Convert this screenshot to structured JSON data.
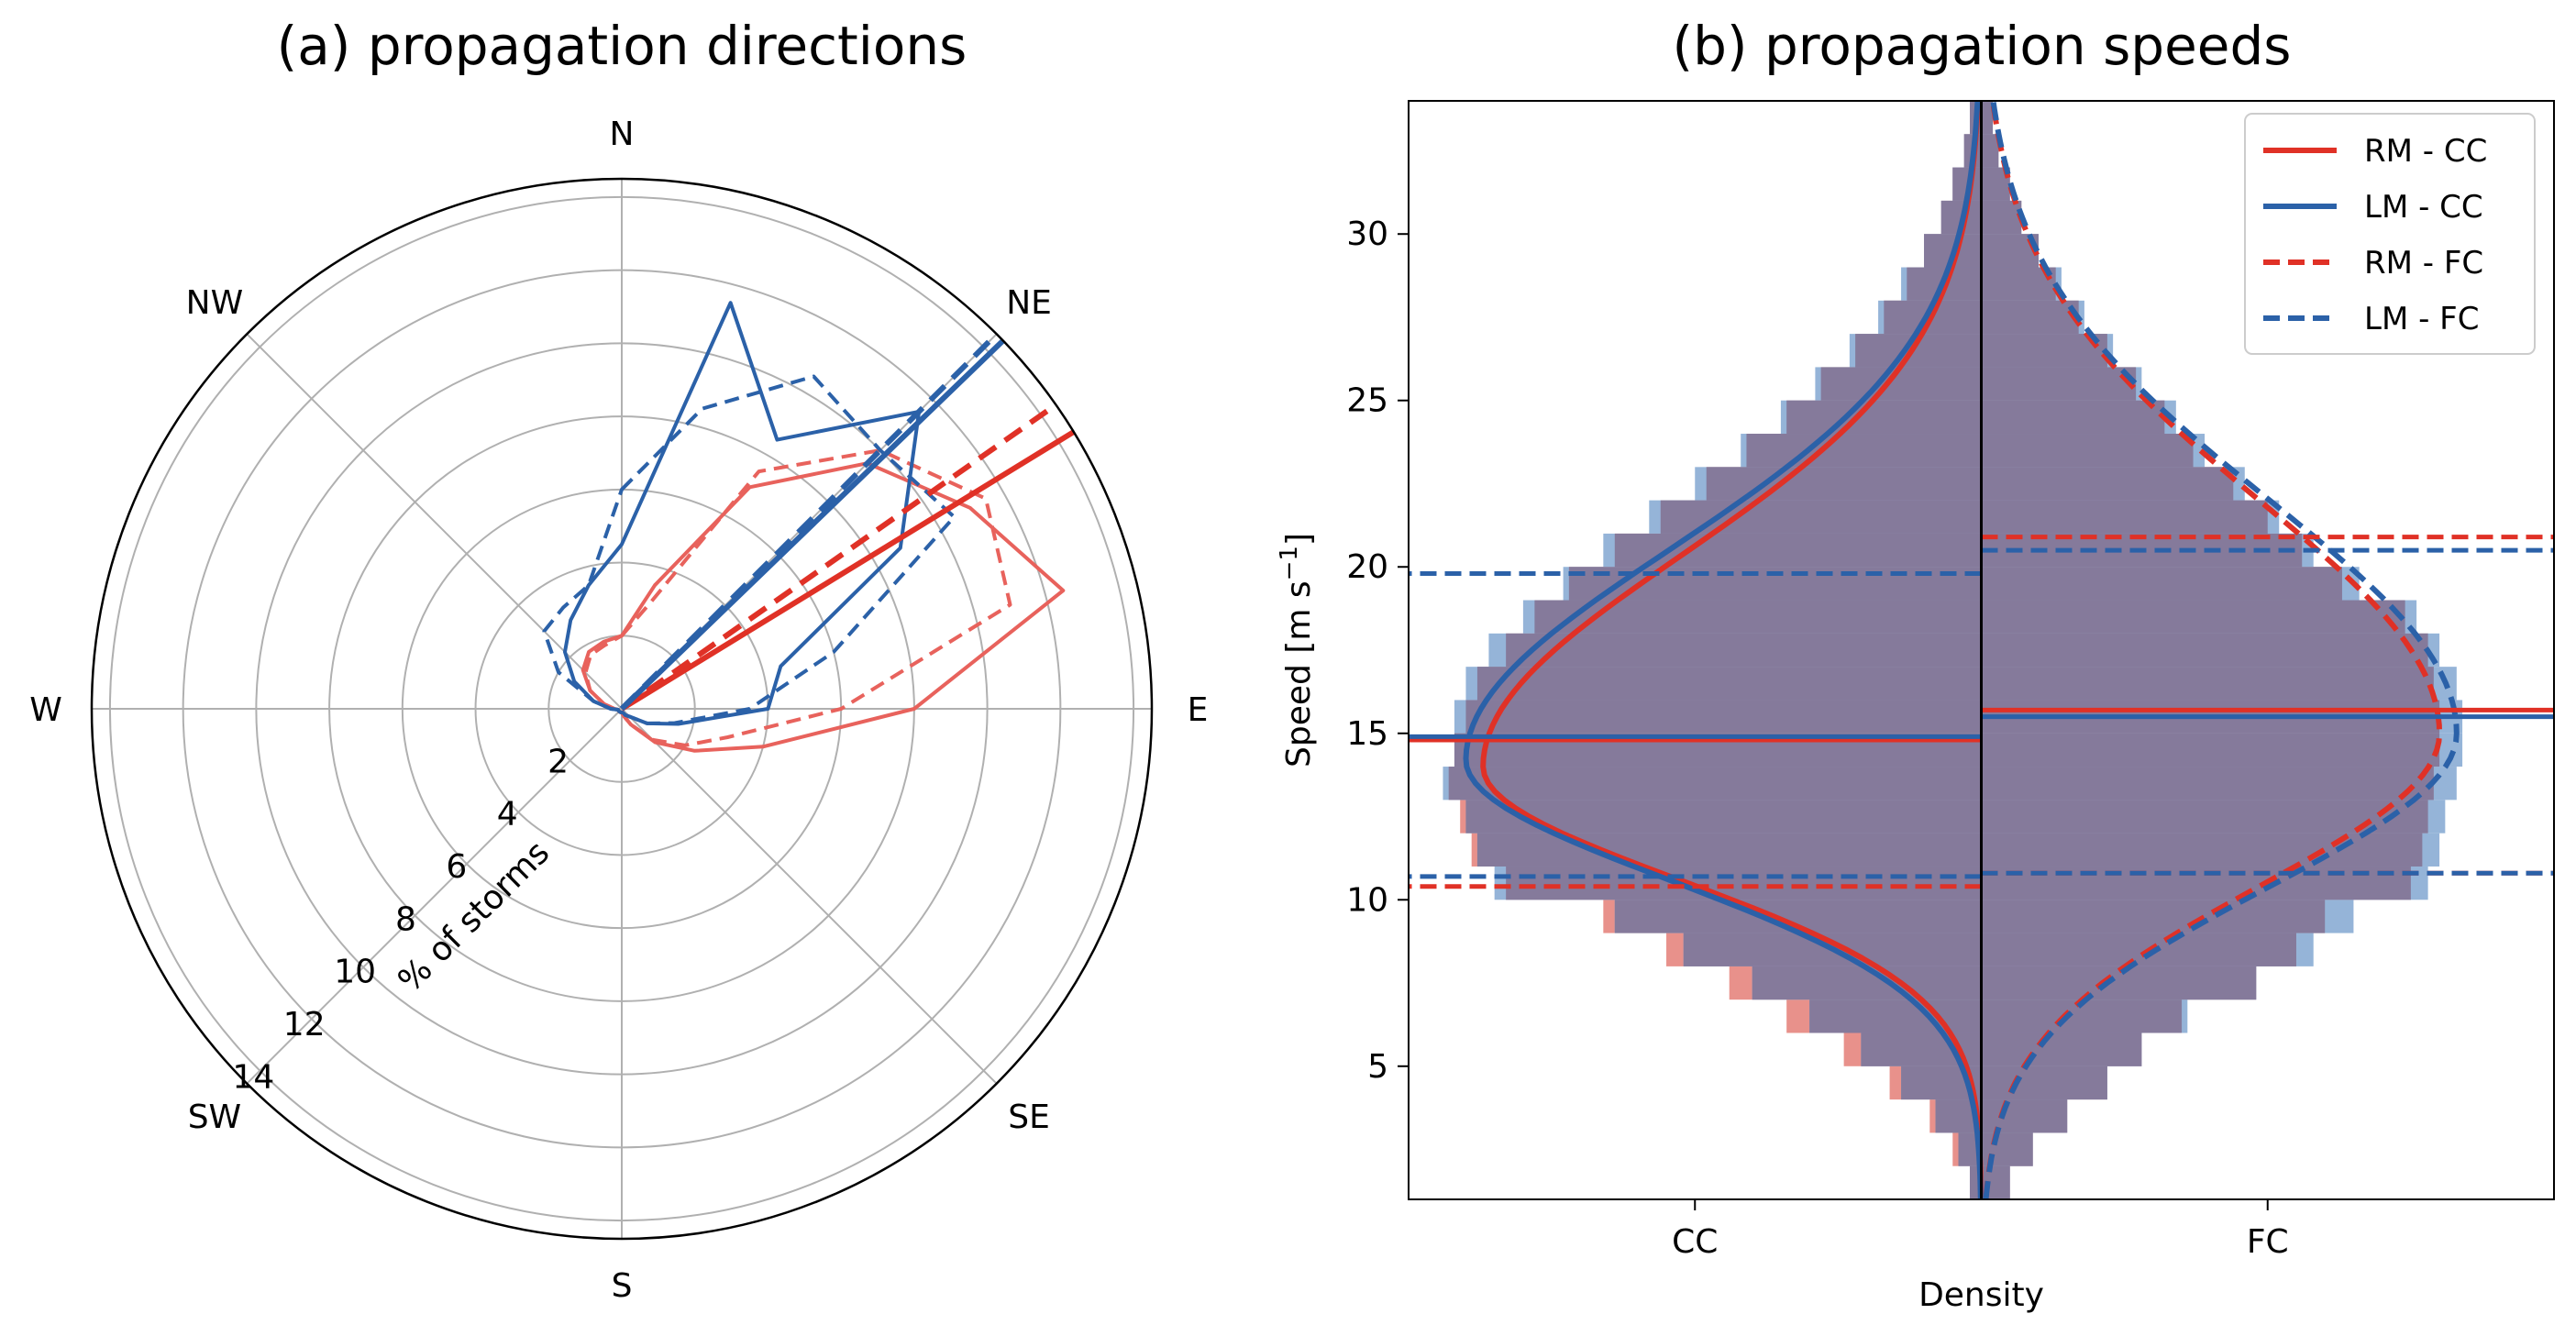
{
  "chart_data": [
    {
      "type": "polar",
      "title": "(a) propagation directions",
      "compass_labels": [
        "N",
        "NE",
        "E",
        "SE",
        "S",
        "SW",
        "W",
        "NW"
      ],
      "radial_ticks": [
        "2",
        "4",
        "6",
        "8",
        "10",
        "12",
        "14"
      ],
      "radial_tick_values": [
        2,
        4,
        6,
        8,
        10,
        12,
        14
      ],
      "radial_max": 14.5,
      "radial_label": "% of storms",
      "grid": true,
      "colors": {
        "RM": "#e03126",
        "LM": "#2b61a8",
        "RM_light": "#e8625c",
        "grid": "#b0b0b0"
      },
      "bearing_bins_deg": [
        0,
        15,
        30,
        45,
        60,
        75,
        90,
        105,
        120,
        135,
        150,
        165,
        180,
        195,
        210,
        225,
        240,
        255,
        270,
        285,
        300,
        315,
        330,
        345
      ],
      "series": [
        {
          "key": "RM-CC",
          "style": "solid",
          "color": "#e8625c",
          "values": [
            2.0,
            3.5,
            7.0,
            9.5,
            11.0,
            12.5,
            8.0,
            4.0,
            2.3,
            1.3,
            0.5,
            0.2,
            0.1,
            0.1,
            0.1,
            0.1,
            0.1,
            0.1,
            0.2,
            0.5,
            1.0,
            1.5,
            1.8,
            1.9
          ]
        },
        {
          "key": "RM-FC",
          "style": "dashed",
          "color": "#e8625c",
          "values": [
            2.0,
            3.0,
            7.5,
            10.0,
            11.5,
            11.0,
            6.0,
            3.0,
            2.0,
            1.2,
            0.5,
            0.2,
            0.1,
            0.1,
            0.1,
            0.1,
            0.1,
            0.1,
            0.2,
            0.5,
            1.0,
            1.4,
            1.7,
            1.8
          ]
        },
        {
          "key": "LM-CC",
          "style": "solid",
          "color": "#2b61a8",
          "values": [
            4.5,
            11.5,
            8.5,
            11.5,
            8.8,
            4.5,
            4.0,
            1.6,
            0.8,
            0.3,
            0.2,
            0.1,
            0.1,
            0.1,
            0.1,
            0.1,
            0.1,
            0.1,
            0.3,
            0.8,
            1.5,
            2.2,
            2.8,
            3.5
          ]
        },
        {
          "key": "LM-FC",
          "style": "dashed",
          "color": "#2b61a8",
          "values": [
            6.0,
            8.5,
            10.5,
            10.0,
            10.5,
            6.0,
            3.5,
            1.5,
            0.8,
            0.3,
            0.2,
            0.1,
            0.1,
            0.1,
            0.1,
            0.1,
            0.1,
            0.1,
            0.3,
            0.8,
            2.0,
            3.0,
            3.2,
            3.5
          ]
        }
      ],
      "mean_direction_lines_deg": [
        {
          "key": "RM - CC",
          "bearing": 58.5,
          "style": "solid",
          "color": "#e03126"
        },
        {
          "key": "RM - FC",
          "bearing": 55.0,
          "style": "dashed",
          "color": "#e03126"
        },
        {
          "key": "LM - CC",
          "bearing": 46.0,
          "style": "solid",
          "color": "#2b61a8"
        },
        {
          "key": "LM - FC",
          "bearing": 45.0,
          "style": "dashed",
          "color": "#2b61a8"
        }
      ]
    },
    {
      "type": "violin",
      "title": "(b) propagation speeds",
      "xlabel": "Density",
      "ylabel": "Speed [m s",
      "ylabel_sup": "−1",
      "ylabel_end": "]",
      "categories": [
        "CC",
        "FC"
      ],
      "ylim": [
        1,
        34
      ],
      "yticks": [
        5,
        10,
        15,
        20,
        25,
        30
      ],
      "bin_edges": [
        1,
        2,
        3,
        4,
        5,
        6,
        7,
        8,
        9,
        10,
        11,
        12,
        13,
        14,
        15,
        16,
        17,
        18,
        19,
        20,
        21,
        22,
        23,
        24,
        25,
        26,
        27,
        28,
        29,
        30,
        31,
        32,
        33,
        34
      ],
      "hist": {
        "CC_RM": [
          0.02,
          0.05,
          0.09,
          0.16,
          0.24,
          0.34,
          0.44,
          0.55,
          0.66,
          0.83,
          0.89,
          0.91,
          0.93,
          0.92,
          0.9,
          0.88,
          0.83,
          0.78,
          0.72,
          0.64,
          0.56,
          0.48,
          0.41,
          0.34,
          0.28,
          0.22,
          0.17,
          0.13,
          0.1,
          0.07,
          0.05,
          0.03,
          0.02
        ],
        "CC_LM": [
          0.02,
          0.04,
          0.08,
          0.14,
          0.21,
          0.3,
          0.4,
          0.52,
          0.64,
          0.85,
          0.88,
          0.9,
          0.94,
          0.92,
          0.92,
          0.9,
          0.86,
          0.8,
          0.73,
          0.66,
          0.58,
          0.5,
          0.42,
          0.35,
          0.29,
          0.23,
          0.18,
          0.14,
          0.1,
          0.07,
          0.05,
          0.03,
          0.02
        ],
        "FC_RM": [
          0.05,
          0.09,
          0.15,
          0.22,
          0.28,
          0.35,
          0.48,
          0.55,
          0.6,
          0.75,
          0.77,
          0.78,
          0.79,
          0.8,
          0.8,
          0.79,
          0.78,
          0.74,
          0.63,
          0.56,
          0.5,
          0.44,
          0.37,
          0.32,
          0.27,
          0.22,
          0.17,
          0.13,
          0.1,
          0.07,
          0.05,
          0.03,
          0.02
        ],
        "FC_LM": [
          0.05,
          0.09,
          0.15,
          0.22,
          0.28,
          0.36,
          0.48,
          0.58,
          0.65,
          0.78,
          0.8,
          0.81,
          0.83,
          0.84,
          0.84,
          0.83,
          0.8,
          0.76,
          0.66,
          0.58,
          0.52,
          0.46,
          0.39,
          0.34,
          0.28,
          0.23,
          0.18,
          0.14,
          0.1,
          0.07,
          0.05,
          0.03,
          0.02
        ]
      },
      "series": [
        {
          "name": "RM - CC",
          "side": "CC",
          "mean": 14.8,
          "p10": 10.4,
          "p90": 19.8,
          "mode": 14.0,
          "width": 0.87,
          "sigma_low": 3.4,
          "sigma_high": 6.3,
          "style": "solid",
          "color": "#e03126"
        },
        {
          "name": "LM - CC",
          "side": "CC",
          "mean": 14.9,
          "p10": 10.7,
          "p90": 19.8,
          "mode": 14.2,
          "width": 0.9,
          "sigma_low": 3.6,
          "sigma_high": 6.3,
          "style": "solid",
          "color": "#2b61a8"
        },
        {
          "name": "RM - FC",
          "side": "FC",
          "mean": 15.7,
          "p10": 10.8,
          "p90": 20.9,
          "mode": 15.0,
          "width": 0.8,
          "sigma_low": 4.6,
          "sigma_high": 7.0,
          "style": "dashed",
          "color": "#e03126"
        },
        {
          "name": "LM - FC",
          "side": "FC",
          "mean": 15.5,
          "p10": 10.8,
          "p90": 20.5,
          "mode": 15.0,
          "width": 0.83,
          "sigma_low": 4.6,
          "sigma_high": 7.0,
          "style": "dashed",
          "color": "#2b61a8"
        }
      ],
      "legend_position": "top-right",
      "colors": {
        "RM": "#e03126",
        "LM": "#2b61a8",
        "RM_fill": "#e78b85",
        "LM_fill": "#8fb0d6",
        "overlap": "#857a9b"
      }
    }
  ]
}
